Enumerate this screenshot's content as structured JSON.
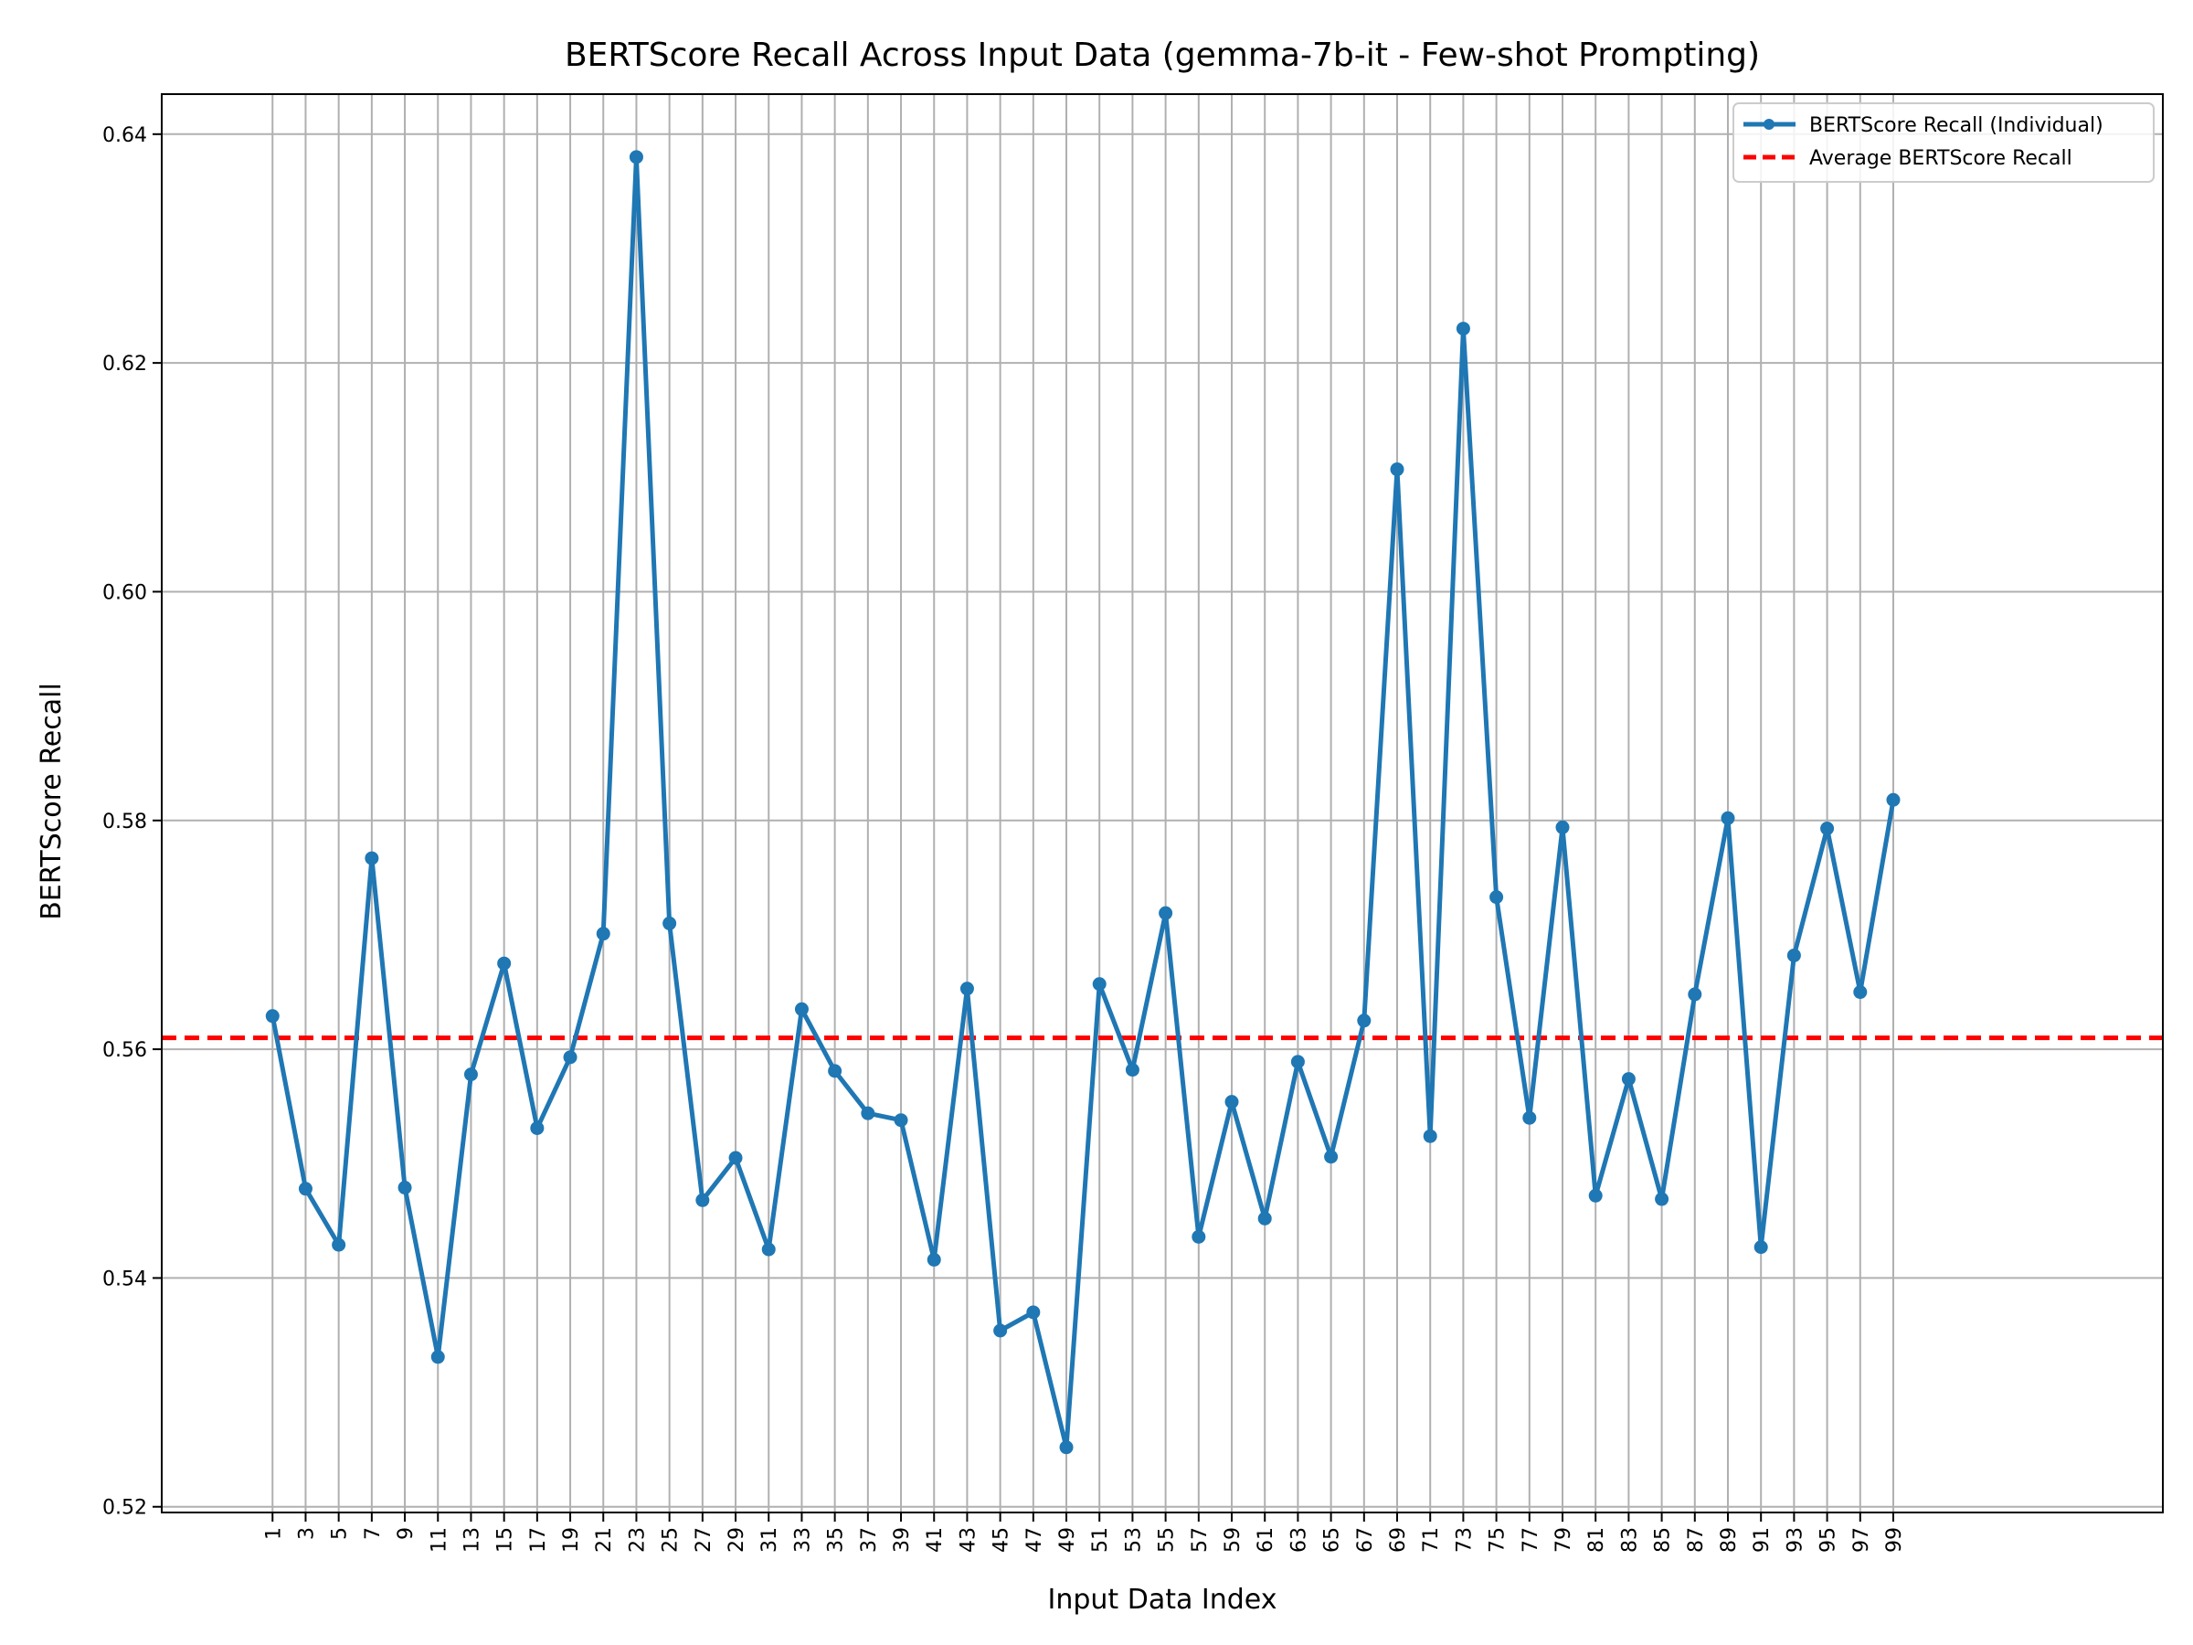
{
  "chart_data": {
    "type": "line",
    "title": "BERTScore Recall Across Input Data (gemma-7b-it - Few-shot Prompting)",
    "xlabel": "Input Data Index",
    "ylabel": "BERTScore Recall",
    "x": [
      1,
      3,
      5,
      7,
      9,
      11,
      13,
      15,
      17,
      19,
      21,
      23,
      25,
      27,
      29,
      31,
      33,
      35,
      37,
      39,
      41,
      43,
      45,
      47,
      49,
      51,
      53,
      55,
      57,
      59,
      61,
      63,
      65,
      67,
      69,
      71,
      73,
      75,
      77,
      79,
      81,
      83,
      85,
      87,
      89,
      91,
      93,
      95,
      97,
      99
    ],
    "x_tick_labels": [
      "1",
      "3",
      "5",
      "7",
      "9",
      "11",
      "13",
      "15",
      "17",
      "19",
      "21",
      "23",
      "25",
      "27",
      "29",
      "31",
      "33",
      "35",
      "37",
      "39",
      "41",
      "43",
      "45",
      "47",
      "49",
      "51",
      "53",
      "55",
      "57",
      "59",
      "61",
      "63",
      "65",
      "67",
      "69",
      "71",
      "73",
      "75",
      "77",
      "79",
      "81",
      "83",
      "85",
      "87",
      "89",
      "91",
      "93",
      "95",
      "97",
      "99"
    ],
    "series": [
      {
        "name": "BERTScore Recall (Individual)",
        "color": "#1f77b4",
        "values": [
          0.5629,
          0.5478,
          0.5429,
          0.5767,
          0.5479,
          0.5331,
          0.5578,
          0.5675,
          0.5531,
          0.5593,
          0.5701,
          0.638,
          0.571,
          0.5468,
          0.5505,
          0.5425,
          0.5635,
          0.5581,
          0.5544,
          0.5538,
          0.5416,
          0.5653,
          0.5354,
          0.537,
          0.5252,
          0.5657,
          0.5582,
          0.5719,
          0.5436,
          0.5554,
          0.5452,
          0.5589,
          0.5506,
          0.5625,
          0.6107,
          0.5524,
          0.623,
          0.5733,
          0.554,
          0.5794,
          0.5472,
          0.5574,
          0.5469,
          0.5648,
          0.5802,
          0.5427,
          0.5682,
          0.5793,
          0.565,
          0.5818
        ]
      }
    ],
    "reference_lines": [
      {
        "name": "Average BERTScore Recall",
        "value": 0.561,
        "color": "#ff0000",
        "style": "dashed"
      }
    ],
    "yticks": [
      0.52,
      0.54,
      0.56,
      0.58,
      0.6,
      0.62,
      0.64
    ],
    "ytick_labels": [
      "0.52",
      "0.54",
      "0.56",
      "0.58",
      "0.60",
      "0.62",
      "0.64"
    ],
    "ylim": [
      0.5195,
      0.6435
    ],
    "xlim": [
      -5.7,
      115.3
    ],
    "grid": true,
    "legend_position": "top-right"
  }
}
